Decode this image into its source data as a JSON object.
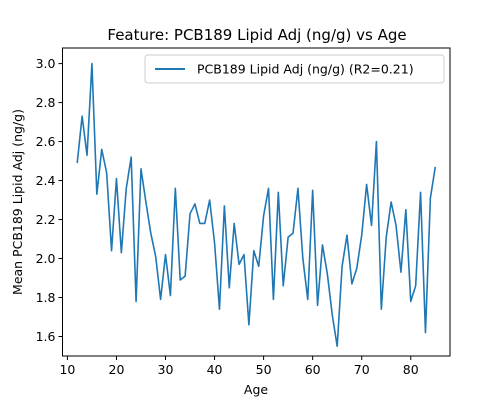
{
  "chart_data": {
    "type": "line",
    "title": "Feature: PCB189 Lipid Adj (ng/g) vs Age",
    "xlabel": "Age",
    "ylabel": "Mean PCB189 Lipid Adj (ng/g)",
    "xlim": [
      9,
      88
    ],
    "ylim": [
      1.5,
      3.08
    ],
    "xticks": [
      10,
      20,
      30,
      40,
      50,
      60,
      70,
      80
    ],
    "yticks": [
      1.6,
      1.8,
      2.0,
      2.2,
      2.4,
      2.6,
      2.8,
      3.0
    ],
    "xtick_labels": [
      "10",
      "20",
      "30",
      "40",
      "50",
      "60",
      "70",
      "80"
    ],
    "ytick_labels": [
      "1.6",
      "1.8",
      "2.0",
      "2.2",
      "2.4",
      "2.6",
      "2.8",
      "3.0"
    ],
    "grid": false,
    "legend_position": "top-right",
    "series": [
      {
        "name": "PCB189 Lipid Adj (ng/g) (R2=0.21)",
        "color": "#1f77b4",
        "x": [
          12,
          13,
          14,
          15,
          16,
          17,
          18,
          19,
          20,
          21,
          22,
          23,
          24,
          25,
          26,
          27,
          28,
          29,
          30,
          31,
          32,
          33,
          34,
          35,
          36,
          37,
          38,
          39,
          40,
          41,
          42,
          43,
          44,
          45,
          46,
          47,
          48,
          49,
          50,
          51,
          52,
          53,
          54,
          55,
          56,
          57,
          58,
          59,
          60,
          61,
          62,
          63,
          64,
          65,
          66,
          67,
          68,
          69,
          70,
          71,
          72,
          73,
          74,
          75,
          76,
          77,
          78,
          79,
          80,
          81,
          82,
          83,
          84,
          85
        ],
        "y": [
          2.49,
          2.73,
          2.53,
          3.0,
          2.33,
          2.56,
          2.44,
          2.04,
          2.41,
          2.03,
          2.36,
          2.52,
          1.78,
          2.46,
          2.29,
          2.13,
          2.01,
          1.79,
          2.02,
          1.81,
          2.36,
          1.89,
          1.91,
          2.23,
          2.28,
          2.18,
          2.18,
          2.3,
          2.08,
          1.74,
          2.27,
          1.85,
          2.18,
          1.97,
          2.02,
          1.66,
          2.04,
          1.96,
          2.22,
          2.36,
          1.79,
          2.34,
          1.86,
          2.11,
          2.13,
          2.36,
          2.0,
          1.79,
          2.35,
          1.76,
          2.07,
          1.92,
          1.71,
          1.55,
          1.96,
          2.12,
          1.87,
          1.95,
          2.12,
          2.38,
          2.17,
          2.6,
          1.74,
          2.11,
          2.29,
          2.17,
          1.93,
          2.25,
          1.78,
          1.86,
          2.34,
          1.62,
          2.31,
          2.47
        ]
      }
    ]
  }
}
